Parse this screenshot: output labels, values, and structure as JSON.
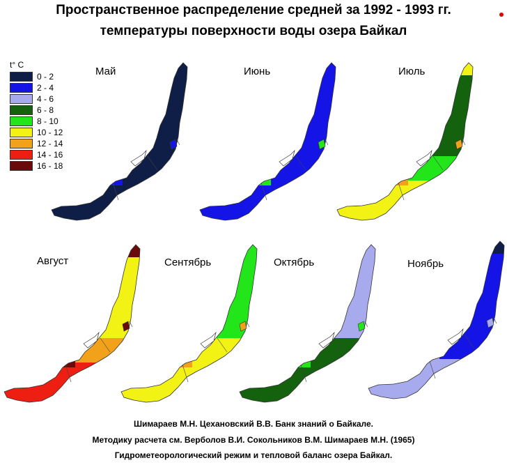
{
  "title": {
    "line1": "Пространственное распределение средней  за 1992 - 1993 гг.",
    "line2": "температуры поверхности воды озера Байкал"
  },
  "legend": {
    "unit": "t° C",
    "items": [
      {
        "label": "0 - 2",
        "color": "#0e1e46"
      },
      {
        "label": "2 - 4",
        "color": "#1414e6"
      },
      {
        "label": "4 - 6",
        "color": "#a8aaee"
      },
      {
        "label": "6 - 8",
        "color": "#14620e"
      },
      {
        "label": "8 - 10",
        "color": "#22e61a"
      },
      {
        "label": "10 - 12",
        "color": "#f2f214"
      },
      {
        "label": "12 - 14",
        "color": "#f2a11a"
      },
      {
        "label": "14 - 16",
        "color": "#ee1e12"
      },
      {
        "label": "16 - 18",
        "color": "#6a0a0a"
      }
    ]
  },
  "maps": [
    {
      "month": "Май",
      "south": "#0e1e46",
      "mid": "#0e1e46",
      "north": "#0e1e46",
      "tip": "#0e1e46",
      "accent": "#1414e6"
    },
    {
      "month": "Июнь",
      "south": "#1414e6",
      "mid": "#1414e6",
      "north": "#1414e6",
      "tip": "#1414e6",
      "accent": "#22e61a"
    },
    {
      "month": "Июль",
      "south": "#f2f214",
      "mid": "#22e61a",
      "north": "#14620e",
      "tip": "#f2f214",
      "accent": "#f2a11a"
    },
    {
      "month": "Август",
      "south": "#ee1e12",
      "mid": "#f2a11a",
      "north": "#f2f214",
      "tip": "#6a0a0a",
      "accent": "#6a0a0a"
    },
    {
      "month": "Сентябрь",
      "south": "#f2f214",
      "mid": "#f2f214",
      "north": "#22e61a",
      "tip": "#22e61a",
      "accent": "#f2a11a"
    },
    {
      "month": "Октябрь",
      "south": "#14620e",
      "mid": "#14620e",
      "north": "#a8aaee",
      "tip": "#a8aaee",
      "accent": "#22e61a"
    },
    {
      "month": "Ноябрь",
      "south": "#a8aaee",
      "mid": "#1414e6",
      "north": "#1414e6",
      "tip": "#0e1e46",
      "accent": "#a8aaee"
    }
  ],
  "credits": {
    "line1": "Шимараев М.Н. Цехановский  В.В.  Банк знаний о Байкале.",
    "line2": "Методику расчета см. Верболов В.И. Сокольников В.М. Шимараев М.Н. (1965)",
    "line3": "Гидрометеорологический режим и тепловой баланс озера Байкал."
  }
}
